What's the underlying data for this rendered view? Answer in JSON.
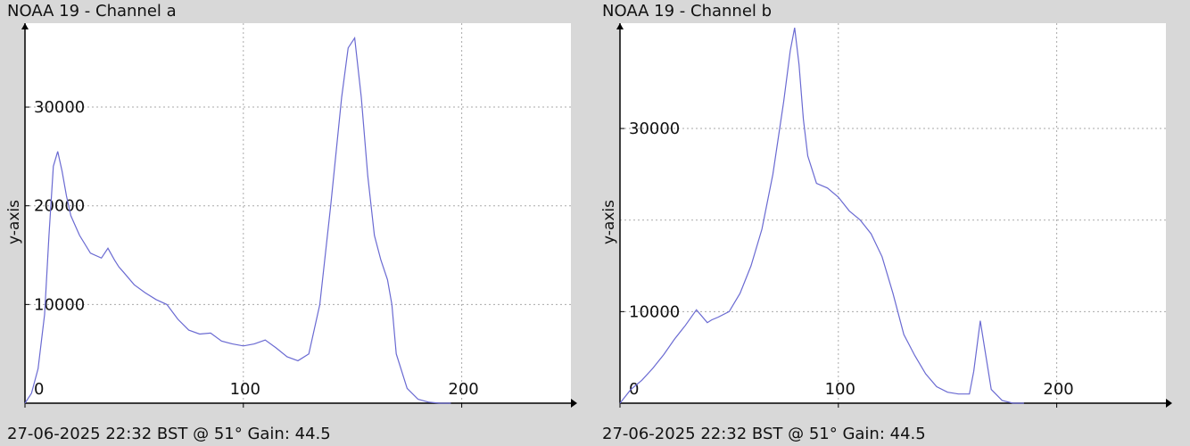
{
  "colors": {
    "background": "#d8d8d8",
    "plot_bg": "#ffffff",
    "line": "#6a6ad2",
    "grid": "#aaaaaa",
    "axis": "#000000"
  },
  "chart_data": [
    {
      "type": "line",
      "title": "NOAA 19 - Channel a",
      "footer": "27-06-2025 22:32 BST @ 51° Gain: 44.5",
      "xlabel": "",
      "ylabel": "y-axis",
      "xlim": [
        0,
        250
      ],
      "ylim": [
        0,
        38500
      ],
      "x_ticks": [
        0,
        100,
        200
      ],
      "x_tick_labels": [
        "0",
        "100",
        "200"
      ],
      "y_ticks": [
        10000,
        20000,
        30000
      ],
      "y_tick_labels": [
        "10000",
        "20000",
        "30000"
      ],
      "grid": true,
      "series": [
        {
          "x": [
            0,
            3,
            6,
            9,
            11,
            13,
            15,
            17,
            19,
            21,
            25,
            30,
            35,
            38,
            41,
            43,
            45,
            50,
            55,
            60,
            65,
            70,
            75,
            80,
            85,
            90,
            95,
            100,
            105,
            110,
            115,
            120,
            125,
            130,
            135,
            140,
            145,
            148,
            151,
            154,
            157,
            160,
            163,
            166,
            168,
            170,
            175,
            180,
            185,
            190,
            195
          ],
          "y": [
            0,
            1000,
            3500,
            9000,
            17000,
            24000,
            25500,
            23500,
            21000,
            19000,
            17000,
            15200,
            14700,
            15700,
            14500,
            13800,
            13300,
            12000,
            11200,
            10500,
            10000,
            8500,
            7400,
            7000,
            7100,
            6300,
            6000,
            5800,
            6000,
            6400,
            5600,
            4700,
            4300,
            5000,
            10000,
            20000,
            31000,
            36000,
            37000,
            31000,
            23000,
            17000,
            14500,
            12500,
            10000,
            5000,
            1500,
            400,
            100,
            0,
            0
          ]
        }
      ]
    },
    {
      "type": "line",
      "title": "NOAA 19 - Channel b",
      "footer": "27-06-2025 22:32 BST @ 51° Gain: 44.5",
      "xlabel": "",
      "ylabel": "y-axis",
      "xlim": [
        0,
        250
      ],
      "ylim": [
        0,
        41500
      ],
      "x_ticks": [
        0,
        100,
        200
      ],
      "x_tick_labels": [
        "0",
        "100",
        "200"
      ],
      "y_ticks": [
        10000,
        30000
      ],
      "y_tick_labels": [
        "10000",
        "30000"
      ],
      "y_grid": [
        10000,
        20000,
        30000
      ],
      "grid": true,
      "series": [
        {
          "x": [
            0,
            5,
            10,
            15,
            20,
            25,
            30,
            35,
            40,
            42,
            45,
            50,
            55,
            60,
            65,
            70,
            75,
            78,
            80,
            82,
            84,
            86,
            88,
            90,
            95,
            100,
            105,
            110,
            115,
            120,
            125,
            130,
            135,
            140,
            145,
            150,
            155,
            160,
            162,
            165,
            167,
            170,
            175,
            180,
            185
          ],
          "y": [
            0,
            1500,
            2500,
            3800,
            5300,
            7000,
            8500,
            10200,
            8800,
            9100,
            9400,
            10000,
            12000,
            15000,
            19000,
            25000,
            33000,
            38500,
            41000,
            37000,
            31000,
            27000,
            25500,
            24000,
            23500,
            22500,
            21000,
            20000,
            18500,
            16000,
            12000,
            7500,
            5200,
            3200,
            1800,
            1200,
            1000,
            1000,
            3500,
            9000,
            6000,
            1500,
            300,
            0,
            0
          ]
        }
      ]
    }
  ]
}
